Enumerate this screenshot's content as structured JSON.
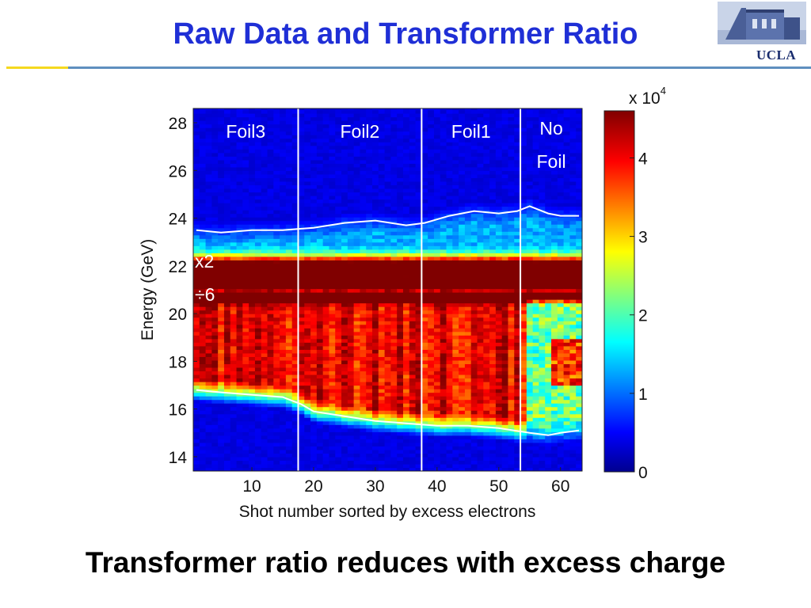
{
  "slide": {
    "title": "Raw Data and Transformer Ratio",
    "caption": "Transformer ratio reduces with excess charge",
    "logo_text": "UCLA",
    "accent_colors": {
      "title": "#1f2fd6",
      "rule_blue": "#5f8fbf",
      "rule_yellow": "#f5d91f"
    }
  },
  "chart_data": {
    "type": "heatmap",
    "xlabel": "Shot number sorted by excess electrons",
    "ylabel": "Energy (GeV)",
    "xlim": [
      0.5,
      63.5
    ],
    "ylim": [
      13.4,
      28.6
    ],
    "x_ticks": [
      10,
      20,
      30,
      40,
      50,
      60
    ],
    "y_ticks": [
      14,
      16,
      18,
      20,
      22,
      24,
      26,
      28
    ],
    "colorbar": {
      "ticks": [
        0,
        1,
        2,
        3,
        4
      ],
      "multiplier": "x 10",
      "exponent": "4",
      "range": [
        0,
        4.6
      ],
      "colormap": "jet"
    },
    "dividers_x": [
      17.5,
      37.5,
      53.5
    ],
    "regions": [
      {
        "label": "Foil3",
        "x": 9
      },
      {
        "label": "Foil2",
        "x": 27.5
      },
      {
        "label": "Foil1",
        "x": 45.5
      },
      {
        "label": "No",
        "x": 58.5
      },
      {
        "label": "Foil",
        "x": 58.5
      }
    ],
    "annotations": [
      {
        "text": "x2",
        "y": 22.2
      },
      {
        "text": "÷6",
        "y": 20.8
      }
    ],
    "upper_boundary": {
      "x": [
        1,
        5,
        10,
        15,
        20,
        25,
        30,
        35,
        38,
        42,
        46,
        50,
        53,
        55,
        58,
        60,
        63
      ],
      "y": [
        23.5,
        23.4,
        23.5,
        23.5,
        23.6,
        23.8,
        23.9,
        23.7,
        23.8,
        24.1,
        24.3,
        24.2,
        24.3,
        24.5,
        24.2,
        24.1,
        24.1
      ]
    },
    "lower_boundary": {
      "x": [
        1,
        5,
        10,
        15,
        18,
        20,
        25,
        30,
        35,
        40,
        45,
        50,
        55,
        58,
        60,
        63
      ],
      "y": [
        16.8,
        16.7,
        16.6,
        16.5,
        16.2,
        15.9,
        15.7,
        15.5,
        15.4,
        15.3,
        15.3,
        15.2,
        15.0,
        14.9,
        15.0,
        15.1
      ]
    }
  }
}
